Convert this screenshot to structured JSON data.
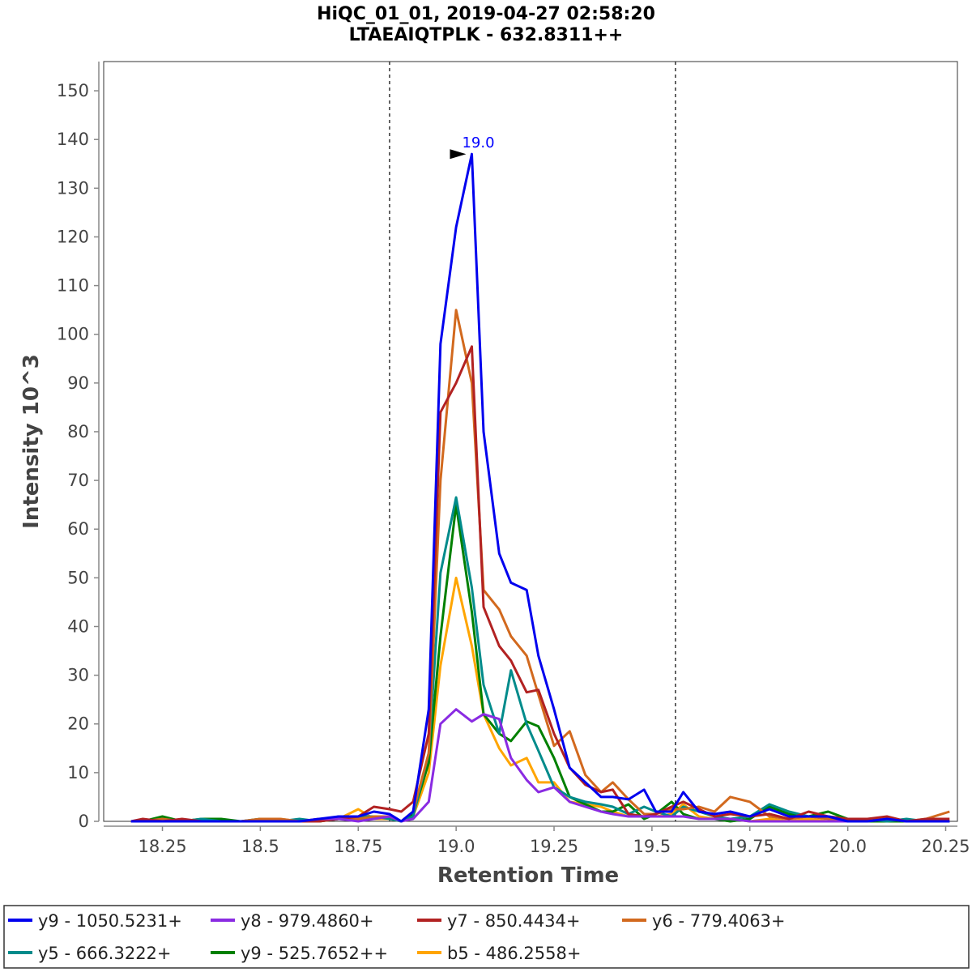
{
  "chart_data": {
    "type": "line",
    "title": "HiQC_01_01, 2019-04-27 02:58:20",
    "subtitle": "LTAEAIQTPLK - 632.8311++",
    "xlabel": "Retention Time",
    "ylabel": "Intensity 10^3",
    "xlim": [
      18.1,
      20.28
    ],
    "ylim": [
      0,
      156
    ],
    "xticks": [
      18.25,
      18.5,
      18.75,
      19.0,
      19.25,
      19.5,
      19.75,
      20.0,
      20.25
    ],
    "xtick_labels": [
      "18.25",
      "18.5",
      "18.75",
      "19.0",
      "19.25",
      "19.5",
      "19.75",
      "20.0",
      "20.25"
    ],
    "yticks": [
      0,
      10,
      20,
      30,
      40,
      50,
      60,
      70,
      80,
      90,
      100,
      110,
      120,
      130,
      140,
      150
    ],
    "ytick_labels": [
      "0",
      "10",
      "20",
      "30",
      "40",
      "50",
      "60",
      "70",
      "80",
      "90",
      "100",
      "110",
      "120",
      "130",
      "140",
      "150"
    ],
    "grid": false,
    "legend_position": "bottom",
    "vlines": [
      18.83,
      19.56
    ],
    "peak_annotation": {
      "label": "19.0",
      "x": 19.04,
      "y": 137,
      "color": "#0000ff"
    },
    "series": [
      {
        "name": "y9 - 1050.5231+",
        "color": "#0000ee",
        "x": [
          18.17,
          18.2,
          18.25,
          18.3,
          18.35,
          18.4,
          18.45,
          18.5,
          18.55,
          18.6,
          18.65,
          18.7,
          18.75,
          18.79,
          18.83,
          18.86,
          18.89,
          18.93,
          18.96,
          19.0,
          19.04,
          19.07,
          19.11,
          19.14,
          19.18,
          19.21,
          19.25,
          19.29,
          19.33,
          19.37,
          19.4,
          19.44,
          19.48,
          19.51,
          19.55,
          19.58,
          19.62,
          19.66,
          19.7,
          19.75,
          19.8,
          19.85,
          19.9,
          19.95,
          20.0,
          20.05,
          20.1,
          20.15,
          20.2,
          20.26
        ],
        "y": [
          0,
          0,
          0,
          0,
          0,
          0,
          0,
          0,
          0,
          0,
          0.5,
          1,
          1,
          2,
          1.5,
          0,
          2,
          23,
          98,
          122,
          137,
          80,
          55,
          49,
          47.5,
          34,
          23,
          11,
          8,
          5,
          5,
          4.5,
          6.5,
          2,
          2,
          6,
          2,
          1.5,
          2,
          1,
          2.5,
          1,
          1,
          1,
          0,
          0,
          0.5,
          0,
          0,
          0
        ]
      },
      {
        "name": "y8 - 979.4860+",
        "color": "#8a2be2",
        "x": [
          18.17,
          18.2,
          18.25,
          18.3,
          18.35,
          18.4,
          18.45,
          18.5,
          18.55,
          18.6,
          18.65,
          18.7,
          18.75,
          18.79,
          18.83,
          18.86,
          18.89,
          18.93,
          18.96,
          19.0,
          19.04,
          19.07,
          19.11,
          19.14,
          19.18,
          19.21,
          19.25,
          19.29,
          19.33,
          19.37,
          19.4,
          19.44,
          19.48,
          19.51,
          19.55,
          19.58,
          19.62,
          19.66,
          19.7,
          19.75,
          19.8,
          19.85,
          19.9,
          19.95,
          20.0,
          20.05,
          20.1,
          20.15,
          20.2,
          20.26
        ],
        "y": [
          0,
          0,
          0,
          0,
          0,
          0,
          0,
          0,
          0,
          0,
          0.5,
          0.5,
          0,
          0.5,
          1,
          0,
          0.5,
          4,
          20,
          23,
          20.5,
          22,
          21,
          13,
          8.5,
          6,
          7,
          4,
          3,
          2,
          1.5,
          1,
          1,
          1,
          1,
          1,
          0.5,
          0.5,
          0.5,
          0,
          0,
          0,
          0,
          0,
          0,
          0,
          0.5,
          0,
          0,
          0
        ]
      },
      {
        "name": "y7 - 850.4434+",
        "color": "#b22222",
        "x": [
          18.17,
          18.2,
          18.25,
          18.3,
          18.35,
          18.4,
          18.45,
          18.5,
          18.55,
          18.6,
          18.65,
          18.7,
          18.75,
          18.79,
          18.83,
          18.86,
          18.89,
          18.93,
          18.96,
          19.0,
          19.04,
          19.07,
          19.11,
          19.14,
          19.18,
          19.21,
          19.25,
          19.29,
          19.33,
          19.37,
          19.4,
          19.44,
          19.48,
          19.51,
          19.55,
          19.58,
          19.62,
          19.66,
          19.7,
          19.75,
          19.8,
          19.85,
          19.9,
          19.95,
          20.0,
          20.05,
          20.1,
          20.15,
          20.2,
          20.26
        ],
        "y": [
          0,
          0.5,
          0,
          0.5,
          0,
          0,
          0,
          0,
          0,
          0,
          0,
          0.5,
          1,
          3,
          2.5,
          2,
          4,
          18,
          84,
          90,
          97.5,
          44,
          36,
          33,
          26.5,
          27,
          18,
          11,
          7.5,
          6,
          6.5,
          1.5,
          1,
          1.5,
          3,
          4,
          2.5,
          1,
          1.5,
          1,
          1.5,
          0.5,
          2,
          1,
          0.5,
          0.5,
          1,
          0,
          0.5,
          0.5
        ]
      },
      {
        "name": "y6 - 779.4063+",
        "color": "#d2691e",
        "x": [
          18.17,
          18.2,
          18.25,
          18.3,
          18.35,
          18.4,
          18.45,
          18.5,
          18.55,
          18.6,
          18.65,
          18.7,
          18.75,
          18.79,
          18.83,
          18.86,
          18.89,
          18.93,
          18.96,
          19.0,
          19.04,
          19.07,
          19.11,
          19.14,
          19.18,
          19.21,
          19.25,
          19.29,
          19.33,
          19.37,
          19.4,
          19.44,
          19.48,
          19.51,
          19.55,
          19.58,
          19.62,
          19.66,
          19.7,
          19.75,
          19.8,
          19.85,
          19.9,
          19.95,
          20.0,
          20.05,
          20.1,
          20.15,
          20.2,
          20.26
        ],
        "y": [
          0,
          0,
          0.5,
          0,
          0,
          0,
          0,
          0.5,
          0.5,
          0,
          0.5,
          0.5,
          0.5,
          1,
          1,
          0,
          2,
          14,
          70,
          105,
          90,
          47.5,
          43.5,
          38,
          34,
          26,
          15.5,
          18.5,
          9.5,
          6,
          8,
          4.5,
          1.5,
          1.5,
          2.5,
          2.5,
          3,
          2,
          5,
          4,
          1,
          0.5,
          1,
          0.5,
          0.5,
          0.5,
          0.5,
          0,
          0.5,
          2
        ]
      },
      {
        "name": "y5 - 666.3222+",
        "color": "#008b8b",
        "x": [
          18.17,
          18.2,
          18.25,
          18.3,
          18.35,
          18.4,
          18.45,
          18.5,
          18.55,
          18.6,
          18.65,
          18.7,
          18.75,
          18.79,
          18.83,
          18.86,
          18.89,
          18.93,
          18.96,
          19.0,
          19.04,
          19.07,
          19.11,
          19.14,
          19.18,
          19.21,
          19.25,
          19.29,
          19.33,
          19.37,
          19.4,
          19.44,
          19.48,
          19.51,
          19.55,
          19.58,
          19.62,
          19.66,
          19.7,
          19.75,
          19.8,
          19.85,
          19.9,
          19.95,
          20.0,
          20.05,
          20.1,
          20.15,
          20.2,
          20.26
        ],
        "y": [
          0,
          0,
          0,
          0,
          0.5,
          0,
          0,
          0,
          0,
          0.5,
          0,
          1,
          1,
          1,
          0.5,
          0,
          1,
          14,
          51,
          66.5,
          48,
          28,
          18,
          31,
          20,
          14.5,
          7,
          5,
          4,
          3.5,
          3,
          1.5,
          3,
          2,
          1,
          3,
          2,
          1,
          0.5,
          1,
          3.5,
          2,
          1,
          1,
          0.5,
          0.5,
          0,
          0.5,
          0,
          0
        ]
      },
      {
        "name": "y9 - 525.7652++",
        "color": "#008000",
        "x": [
          18.17,
          18.2,
          18.25,
          18.3,
          18.35,
          18.4,
          18.45,
          18.5,
          18.55,
          18.6,
          18.65,
          18.7,
          18.75,
          18.79,
          18.83,
          18.86,
          18.89,
          18.93,
          18.96,
          19.0,
          19.04,
          19.07,
          19.11,
          19.14,
          19.18,
          19.21,
          19.25,
          19.29,
          19.33,
          19.37,
          19.4,
          19.44,
          19.48,
          19.51,
          19.55,
          19.58,
          19.62,
          19.66,
          19.7,
          19.75,
          19.8,
          19.85,
          19.9,
          19.95,
          20.0,
          20.05,
          20.1,
          20.15,
          20.2,
          20.26
        ],
        "y": [
          0,
          0,
          1,
          0,
          0.5,
          0.5,
          0,
          0.5,
          0,
          0,
          0,
          0.5,
          0.5,
          1,
          1,
          0,
          1.5,
          12,
          38,
          65,
          43,
          22,
          18,
          16.5,
          20.5,
          19.5,
          13,
          5,
          3.5,
          2,
          2,
          3.5,
          0.5,
          1.5,
          4,
          1.5,
          0.5,
          0.5,
          0,
          0.5,
          3,
          1.5,
          1,
          2,
          0.5,
          0,
          0,
          0,
          0,
          0
        ]
      },
      {
        "name": "b5 - 486.2558+",
        "color": "#ffa500",
        "x": [
          18.17,
          18.2,
          18.25,
          18.3,
          18.35,
          18.4,
          18.45,
          18.5,
          18.55,
          18.6,
          18.65,
          18.7,
          18.75,
          18.79,
          18.83,
          18.86,
          18.89,
          18.93,
          18.96,
          19.0,
          19.04,
          19.07,
          19.11,
          19.14,
          19.18,
          19.21,
          19.25,
          19.29,
          19.33,
          19.37,
          19.4,
          19.44,
          19.48,
          19.51,
          19.55,
          19.58,
          19.62,
          19.66,
          19.7,
          19.75,
          19.8,
          19.85,
          19.9,
          19.95,
          20.0,
          20.05,
          20.1,
          20.15,
          20.2,
          20.26
        ],
        "y": [
          0,
          0,
          0,
          0,
          0,
          0,
          0,
          0,
          0.5,
          0,
          0,
          0.5,
          2.5,
          0.5,
          0.5,
          0,
          1,
          10,
          32,
          50,
          36,
          22,
          15,
          11.5,
          13,
          8,
          8,
          4,
          3.5,
          3,
          2,
          1,
          1,
          1,
          1.5,
          3.5,
          1,
          0.5,
          0.5,
          0,
          0.5,
          0,
          0.5,
          0,
          0,
          0,
          0,
          0,
          0,
          0
        ]
      }
    ]
  }
}
